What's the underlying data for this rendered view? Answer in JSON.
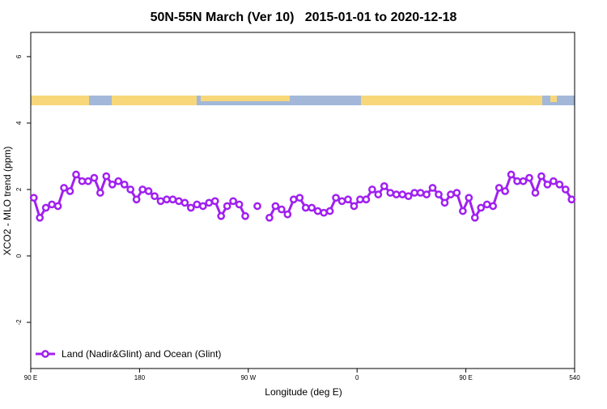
{
  "chart_data": {
    "type": "line",
    "title": "50N-55N March (Ver 10)   2015-01-01 to 2020-12-18",
    "xlabel": "Longitude (deg E)",
    "ylabel": "XCO2 - MLO trend (ppm)",
    "x": [
      92.5,
      97.5,
      102.5,
      107.5,
      112.5,
      117.5,
      122.5,
      127.5,
      132.5,
      137.5,
      142.5,
      147.5,
      152.5,
      157.5,
      162.5,
      167.5,
      172.5,
      177.5,
      182.5,
      187.5,
      192.5,
      197.5,
      202.5,
      207.5,
      212.5,
      217.5,
      222.5,
      227.5,
      232.5,
      237.5,
      242.5,
      247.5,
      252.5,
      257.5,
      262.5,
      267.5,
      272.5,
      277.5,
      282.5,
      287.5,
      292.5,
      297.5,
      302.5,
      307.5,
      312.5,
      317.5,
      322.5,
      327.5,
      332.5,
      337.5,
      342.5,
      347.5,
      352.5,
      357.5,
      362.5,
      367.5,
      372.5,
      377.5,
      382.5,
      387.5,
      392.5,
      397.5,
      402.5,
      407.5,
      412.5,
      417.5,
      422.5,
      427.5,
      432.5,
      437.5,
      442.5,
      447.5,
      452.5,
      457.5,
      462.5,
      467.5,
      472.5,
      477.5,
      482.5,
      487.5,
      492.5,
      497.5,
      502.5,
      507.5,
      512.5,
      517.5,
      522.5,
      527.5,
      532.5,
      537.5
    ],
    "series": [
      {
        "name": "Land (Nadir&Glint) and Ocean (Glint)",
        "color": "#a020f0",
        "values": [
          1.75,
          1.15,
          1.45,
          1.55,
          1.5,
          2.05,
          1.95,
          2.45,
          2.25,
          2.25,
          2.35,
          1.9,
          2.4,
          2.15,
          2.25,
          2.15,
          2.0,
          1.7,
          2.0,
          1.95,
          1.8,
          1.65,
          1.7,
          1.7,
          1.65,
          1.6,
          1.45,
          1.55,
          1.5,
          1.6,
          1.65,
          1.2,
          1.5,
          1.65,
          1.55,
          1.2,
          null,
          1.5,
          null,
          1.15,
          1.5,
          1.4,
          1.25,
          1.7,
          1.75,
          1.45,
          1.45,
          1.35,
          1.3,
          1.35,
          1.75,
          1.65,
          1.7,
          1.5,
          1.7,
          1.7,
          2.0,
          1.85,
          2.1,
          1.9,
          1.85,
          1.85,
          1.8,
          1.9,
          1.9,
          1.85,
          2.05,
          1.85,
          1.6,
          1.85,
          1.9,
          1.35,
          1.75,
          1.15,
          1.45,
          1.55,
          1.5,
          2.05,
          1.95,
          2.45,
          2.25,
          2.25,
          2.35,
          1.9,
          2.4,
          2.15,
          2.25,
          2.15,
          2.0,
          1.7
        ]
      }
    ],
    "xlim": [
      90,
      540
    ],
    "xticks": [
      {
        "value": 90,
        "label": "90 E"
      },
      180,
      {
        "value": 270,
        "label": "90 W"
      },
      {
        "value": 360,
        "label": "0"
      },
      {
        "value": 450,
        "label": "90 E"
      },
      540
    ],
    "ylim": [
      -3.39,
      6.73
    ],
    "yticks": [
      -2,
      0,
      2,
      4,
      6
    ],
    "legend": "bottom-left"
  }
}
